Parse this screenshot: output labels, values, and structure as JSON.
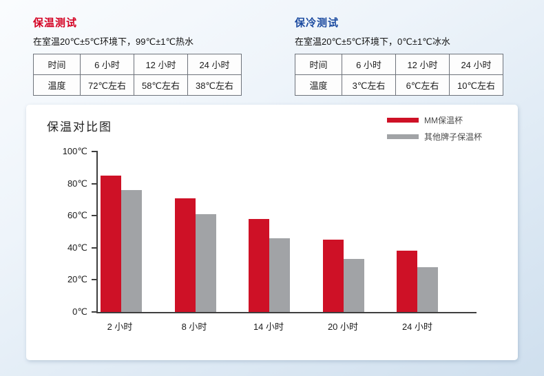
{
  "heat_test": {
    "title": "保温测试",
    "title_color": "#d40022",
    "condition": "在室温20℃±5℃环境下，99℃±1℃热水",
    "table": {
      "rows": [
        [
          "时间",
          "6 小时",
          "12 小时",
          "24 小时"
        ],
        [
          "温度",
          "72℃左右",
          "58℃左右",
          "38℃左右"
        ]
      ]
    }
  },
  "cold_test": {
    "title": "保冷测试",
    "title_color": "#1c4ba0",
    "condition": "在室温20℃±5℃环境下，0℃±1℃冰水",
    "table": {
      "rows": [
        [
          "时间",
          "6 小时",
          "12 小时",
          "24 小时"
        ],
        [
          "温度",
          "3℃左右",
          "6℃左右",
          "10℃左右"
        ]
      ]
    }
  },
  "chart_data": {
    "type": "bar",
    "title": "保温对比图",
    "categories": [
      "2 小时",
      "8 小时",
      "14 小时",
      "20 小时",
      "24 小时"
    ],
    "series": [
      {
        "name": "MM保温杯",
        "color": "#ce1126",
        "values": [
          85,
          71,
          58,
          45,
          38
        ]
      },
      {
        "name": "其他牌子保温杯",
        "color": "#a1a3a6",
        "values": [
          76,
          61,
          46,
          33,
          28
        ]
      }
    ],
    "xlabel": "",
    "ylabel": "",
    "ylim": [
      0,
      100
    ],
    "y_ticks": [
      "100℃",
      "80℃",
      "60℃",
      "40℃",
      "20℃",
      "0℃"
    ],
    "grid": false,
    "legend_position": "top-right"
  }
}
